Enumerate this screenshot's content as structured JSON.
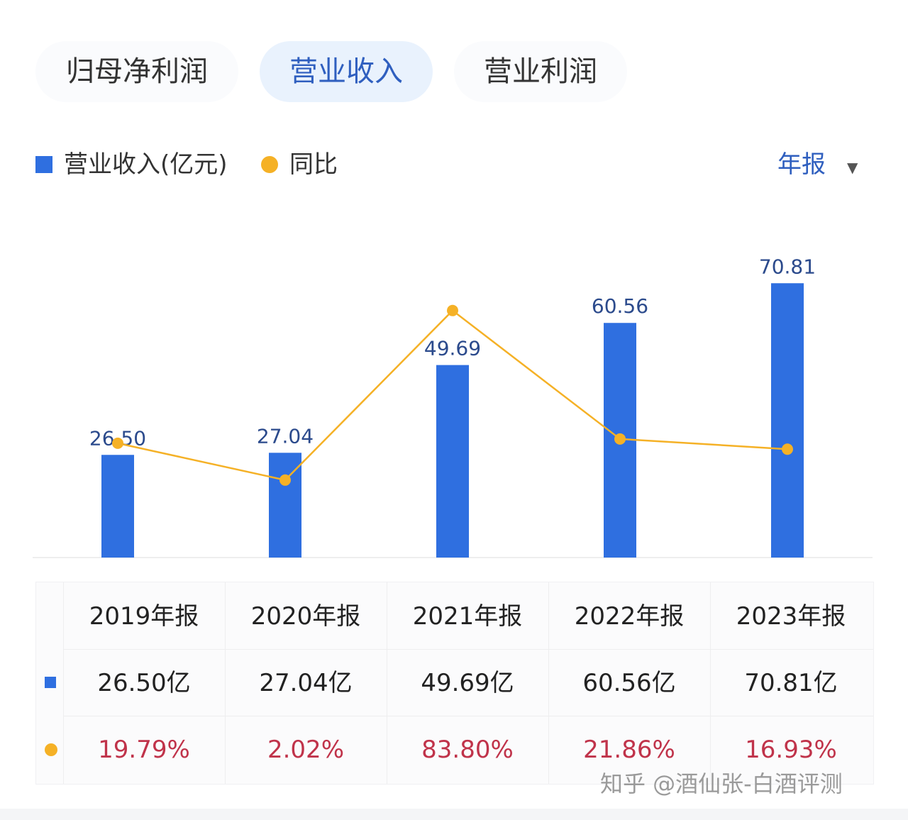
{
  "tabs": [
    {
      "label": "归母净利润",
      "active": false
    },
    {
      "label": "营业收入",
      "active": true
    },
    {
      "label": "营业利润",
      "active": false
    }
  ],
  "legend": {
    "series1_label": "营业收入(亿元)",
    "series2_label": "同比"
  },
  "period_select": {
    "value": "年报"
  },
  "colors": {
    "bar": "#2f6fe0",
    "line": "#f5b126",
    "accent": "#2f5fbf",
    "negative_red": "#c0334a"
  },
  "chart_data": {
    "type": "bar",
    "categories": [
      "2019年报",
      "2020年报",
      "2021年报",
      "2022年报",
      "2023年报"
    ],
    "series": [
      {
        "name": "营业收入(亿元)",
        "type": "bar",
        "values": [
          26.5,
          27.04,
          49.69,
          60.56,
          70.81
        ],
        "labels": [
          "26.50",
          "27.04",
          "49.69",
          "60.56",
          "70.81"
        ]
      },
      {
        "name": "同比",
        "type": "line",
        "values": [
          19.79,
          2.02,
          83.8,
          21.86,
          16.93
        ]
      }
    ],
    "ylim": [
      0,
      78
    ],
    "ylim_yoy": [
      -35,
      107
    ],
    "legend_position": "top-left"
  },
  "table": {
    "headers": [
      "2019年报",
      "2020年报",
      "2021年报",
      "2022年报",
      "2023年报"
    ],
    "revenue_row": [
      "26.50亿",
      "27.04亿",
      "49.69亿",
      "60.56亿",
      "70.81亿"
    ],
    "yoy_row": [
      "19.79%",
      "2.02%",
      "83.80%",
      "21.86%",
      "16.93%"
    ]
  },
  "watermark": "知乎 @酒仙张-白酒评测"
}
